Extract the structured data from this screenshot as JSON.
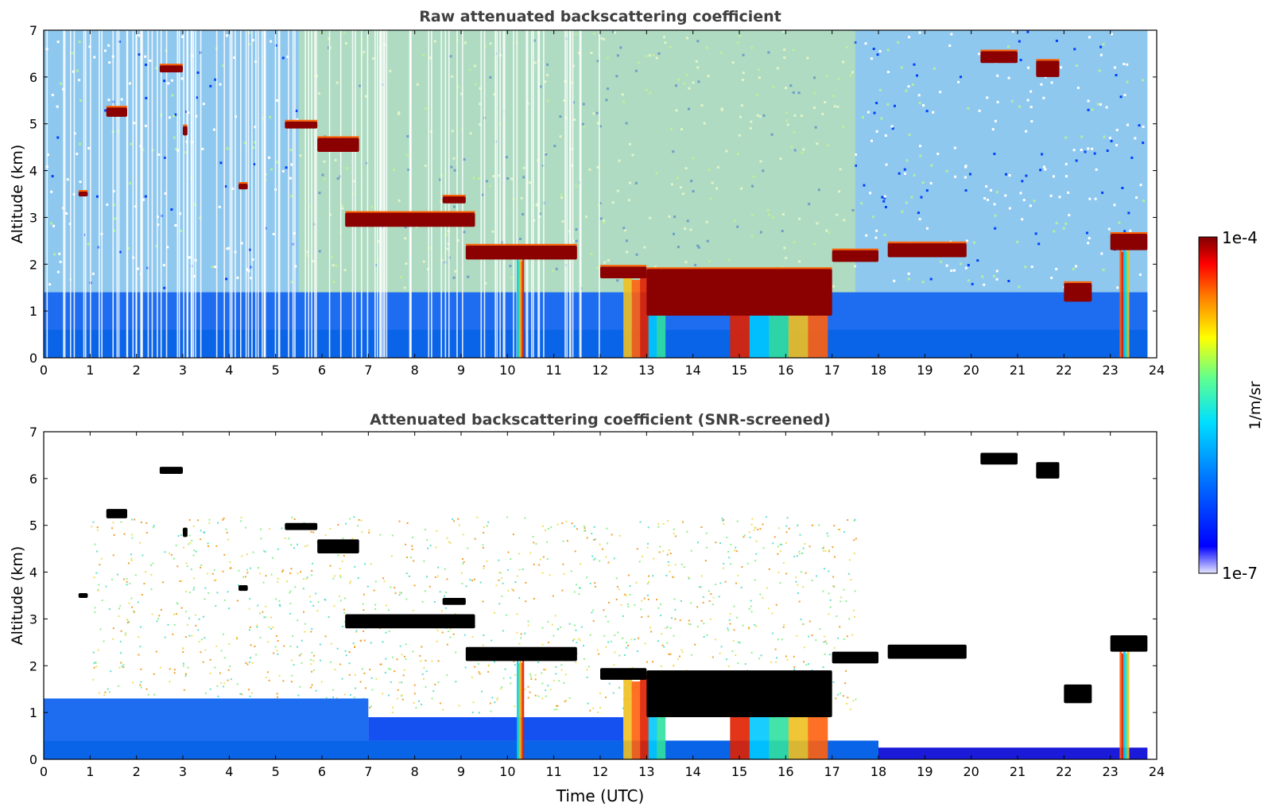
{
  "chart_data": [
    {
      "type": "heatmap",
      "title": "Raw attenuated backscattering coefficient",
      "xlabel": "",
      "ylabel": "Altitude (km)",
      "xlim": [
        0,
        24
      ],
      "ylim": [
        0,
        7
      ],
      "x_ticks": [
        0,
        1,
        2,
        3,
        4,
        5,
        6,
        7,
        8,
        9,
        10,
        11,
        12,
        13,
        14,
        15,
        16,
        17,
        18,
        19,
        20,
        21,
        22,
        23,
        24
      ],
      "y_ticks": [
        0,
        1,
        2,
        3,
        4,
        5,
        6,
        7
      ],
      "data_extent_time": [
        0,
        23.8
      ],
      "screened": false,
      "cloud_layers": [
        {
          "t": [
            2.5,
            3.0
          ],
          "alt": [
            6.1,
            6.25
          ]
        },
        {
          "t": [
            1.35,
            1.8
          ],
          "alt": [
            5.15,
            5.35
          ]
        },
        {
          "t": [
            5.2,
            5.9
          ],
          "alt": [
            4.9,
            5.05
          ]
        },
        {
          "t": [
            5.9,
            6.8
          ],
          "alt": [
            4.4,
            4.7
          ]
        },
        {
          "t": [
            3.0,
            3.1
          ],
          "alt": [
            4.75,
            4.95
          ]
        },
        {
          "t": [
            0.75,
            0.95
          ],
          "alt": [
            3.45,
            3.55
          ]
        },
        {
          "t": [
            4.2,
            4.4
          ],
          "alt": [
            3.6,
            3.72
          ]
        },
        {
          "t": [
            6.5,
            9.3
          ],
          "alt": [
            2.8,
            3.1
          ]
        },
        {
          "t": [
            8.6,
            9.1
          ],
          "alt": [
            3.3,
            3.45
          ]
        },
        {
          "t": [
            9.1,
            11.5
          ],
          "alt": [
            2.1,
            2.4
          ]
        },
        {
          "t": [
            12.0,
            13.0
          ],
          "alt": [
            1.7,
            1.95
          ]
        },
        {
          "t": [
            13.0,
            17.0
          ],
          "alt": [
            0.9,
            1.9
          ]
        },
        {
          "t": [
            17.0,
            18.0
          ],
          "alt": [
            2.05,
            2.3
          ]
        },
        {
          "t": [
            18.2,
            19.9
          ],
          "alt": [
            2.15,
            2.45
          ]
        },
        {
          "t": [
            20.2,
            21.0
          ],
          "alt": [
            6.3,
            6.55
          ]
        },
        {
          "t": [
            21.4,
            21.9
          ],
          "alt": [
            6.0,
            6.35
          ]
        },
        {
          "t": [
            22.0,
            22.6
          ],
          "alt": [
            1.2,
            1.6
          ]
        },
        {
          "t": [
            23.0,
            23.8
          ],
          "alt": [
            2.3,
            2.65
          ]
        }
      ],
      "precipitation_columns": [
        {
          "t": [
            10.2,
            10.35
          ],
          "alt_top": 2.2
        },
        {
          "t": [
            12.5,
            13.4
          ],
          "alt_top": 1.8
        },
        {
          "t": [
            14.8,
            16.9
          ],
          "alt_top": 1.8
        },
        {
          "t": [
            23.2,
            23.4
          ],
          "alt_top": 2.4
        }
      ]
    },
    {
      "type": "heatmap",
      "title": "Attenuated backscattering coefficient (SNR-screened)",
      "xlabel": "Time (UTC)",
      "ylabel": "Altitude (km)",
      "xlim": [
        0,
        24
      ],
      "ylim": [
        0,
        7
      ],
      "x_ticks": [
        0,
        1,
        2,
        3,
        4,
        5,
        6,
        7,
        8,
        9,
        10,
        11,
        12,
        13,
        14,
        15,
        16,
        17,
        18,
        19,
        20,
        21,
        22,
        23,
        24
      ],
      "y_ticks": [
        0,
        1,
        2,
        3,
        4,
        5,
        6,
        7
      ],
      "data_extent_time": [
        0,
        23.8
      ],
      "screened": true
    }
  ],
  "colorbar": {
    "label": "1/m/sr",
    "max_label": "1e-4",
    "min_label": "1e-7",
    "min": 1e-07,
    "max": 0.0001,
    "scale": "log",
    "colormap": "jet"
  },
  "colors": {
    "title_color": "#404040",
    "axis_color": "#000000",
    "cloud_color": "#8b0000",
    "screened_cloud_color": "#000000"
  }
}
